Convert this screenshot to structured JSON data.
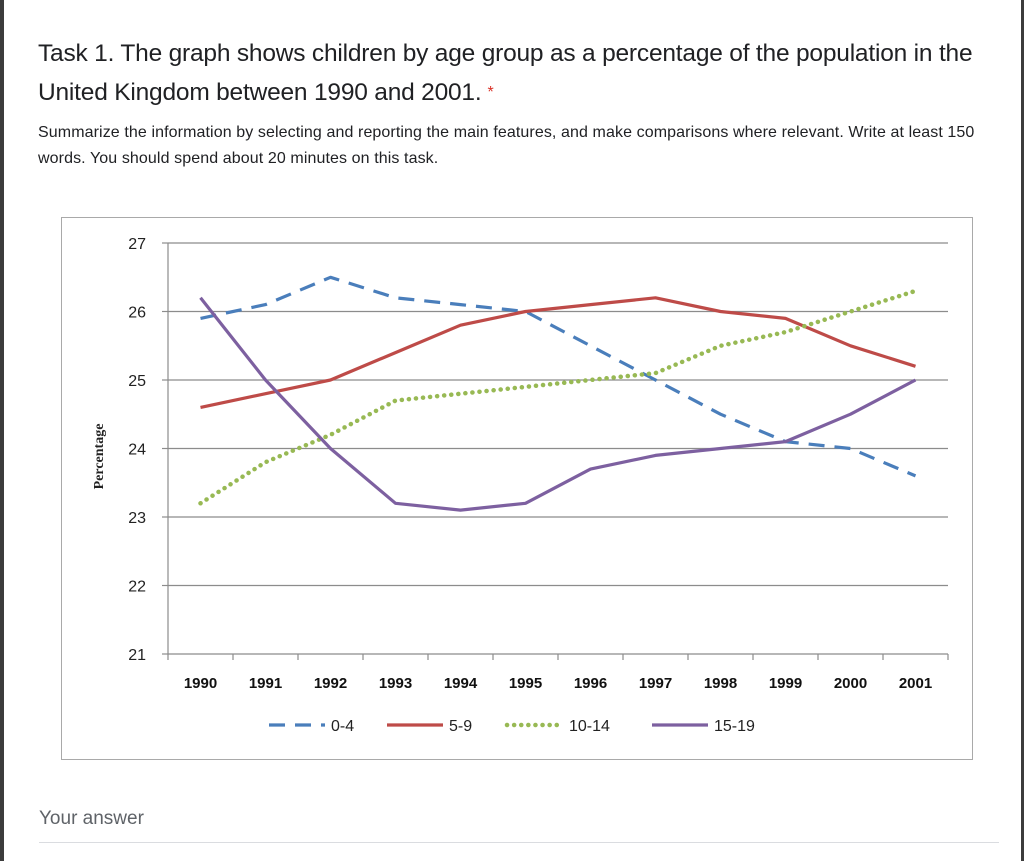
{
  "question": {
    "title": "Task 1. The graph shows children by age group as a percentage of the population in the United Kingdom between 1990 and 2001.",
    "required_marker": "*",
    "description": "Summarize the information by selecting and reporting the main features, and make comparisons where relevant. Write at least 150 words. You should spend about 20 minutes on this task.",
    "answer_placeholder": "Your answer"
  },
  "chart_data": {
    "type": "line",
    "title": "",
    "xlabel": "",
    "ylabel": "Percentage",
    "x": [
      "1990",
      "1991",
      "1992",
      "1993",
      "1994",
      "1995",
      "1996",
      "1997",
      "1998",
      "1999",
      "2000",
      "2001"
    ],
    "ylim": [
      21,
      27
    ],
    "yticks": [
      21,
      22,
      23,
      24,
      25,
      26,
      27
    ],
    "grid": true,
    "legend_position": "bottom",
    "series": [
      {
        "name": "0-4",
        "color": "#4a7ebb",
        "style": "dashed",
        "values": [
          25.9,
          26.1,
          26.5,
          26.2,
          26.1,
          26.0,
          25.5,
          25.0,
          24.5,
          24.1,
          24.0,
          23.6
        ]
      },
      {
        "name": "5-9",
        "color": "#be4b48",
        "style": "solid",
        "values": [
          24.6,
          24.8,
          25.0,
          25.4,
          25.8,
          26.0,
          26.1,
          26.2,
          26.0,
          25.9,
          25.5,
          25.2
        ]
      },
      {
        "name": "10-14",
        "color": "#98b954",
        "style": "dotted",
        "values": [
          23.2,
          23.8,
          24.2,
          24.7,
          24.8,
          24.9,
          25.0,
          25.1,
          25.5,
          25.7,
          26.0,
          26.3
        ]
      },
      {
        "name": "15-19",
        "color": "#7d60a0",
        "style": "solid",
        "values": [
          26.2,
          25.0,
          24.0,
          23.2,
          23.1,
          23.2,
          23.7,
          23.9,
          24.0,
          24.1,
          24.5,
          25.0
        ]
      }
    ]
  }
}
